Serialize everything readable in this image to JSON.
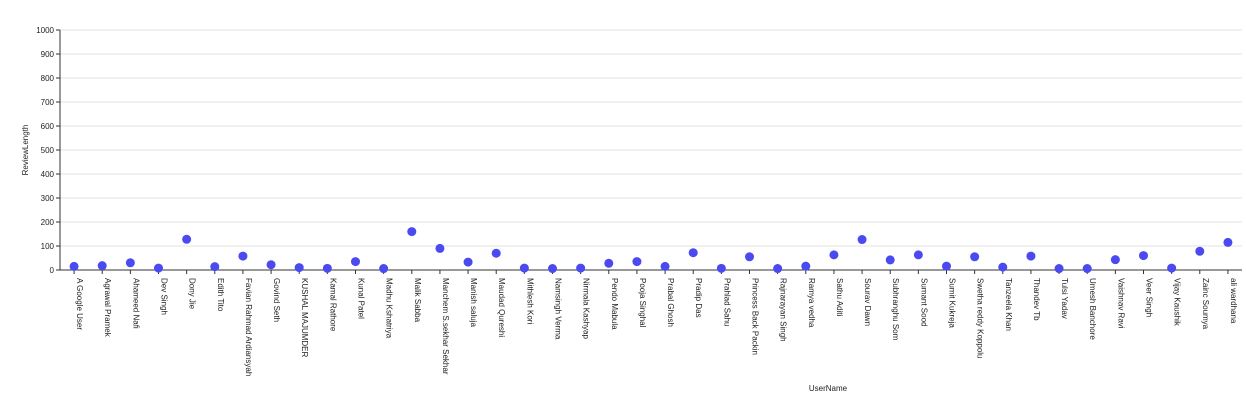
{
  "chart_data": {
    "type": "scatter",
    "xlabel": "UserName",
    "ylabel": "ReviewLength",
    "ylim": [
      0,
      1000
    ],
    "yticks": [
      "0",
      "100",
      "200",
      "300",
      "400",
      "500",
      "600",
      "700",
      "800",
      "900",
      "1000"
    ],
    "grid": true,
    "point_color": "#4a4af0",
    "categories": [
      "A Google User",
      "Agrawal Pramek",
      "Ahameed Nafi",
      "Dev Singh",
      "Dony Jie",
      "Edith Tito",
      "Favian Rahmad Ardiansyah",
      "Govind Seth",
      "KUSHAL MAJUMDER",
      "Kamal Rathore",
      "Kunal Patel",
      "Madhu Kshatriya",
      "Malik Sabba",
      "Manchem S.sekhar Sekhar",
      "Manish saluja",
      "Maudad Qureshi",
      "Mithlesh Kori",
      "Namsingh Verma",
      "Nirmala Kashyap",
      "Pendo Mabula",
      "Pooja Singhal",
      "Prabal Ghosh",
      "Pradip Das",
      "Prahlad Sahu",
      "Princess Back Packin",
      "Rajnarayan Singh",
      "Ramya vedha",
      "Sathu Aditi",
      "Sourav Dawn",
      "Subhranghu Som",
      "Sumant Sood",
      "Sumit Kukreja",
      "Swetha reddy Koppolu",
      "Tanzeela Khan",
      "Thandev Tb",
      "Tulsi Yadav",
      "Umesh Banchore",
      "Vaishnav Ravi",
      "Veer Singh",
      "Vijay Kaushik",
      "Zainc Soumya",
      "ali wardhana"
    ],
    "values": [
      15,
      18,
      30,
      8,
      128,
      14,
      58,
      22,
      10,
      7,
      35,
      6,
      160,
      90,
      33,
      70,
      8,
      6,
      8,
      28,
      35,
      15,
      72,
      7,
      55,
      6,
      16,
      63,
      127,
      42,
      63,
      16,
      55,
      12,
      58,
      6,
      6,
      43,
      60,
      8,
      78,
      115
    ]
  }
}
